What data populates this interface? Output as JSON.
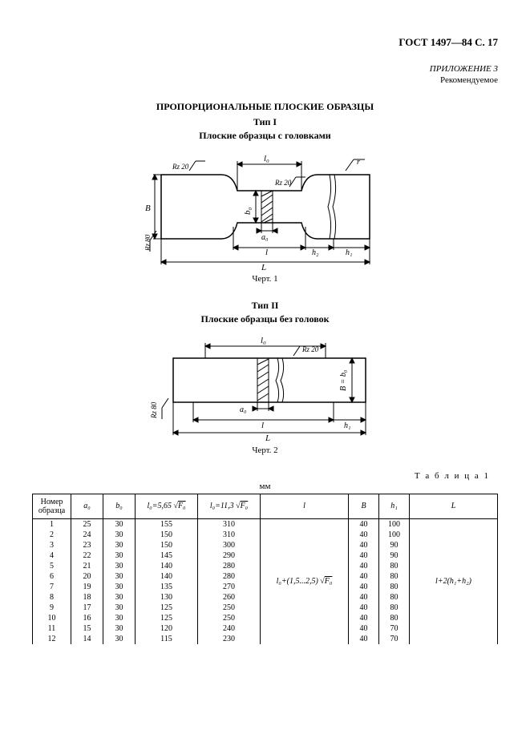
{
  "header": "ГОСТ 1497—84 С. 17",
  "appendix": {
    "line1": "ПРИЛОЖЕНИЕ 3",
    "line2": "Рекомендуемое"
  },
  "title": "ПРОПОРЦИОНАЛЬНЫЕ ПЛОСКИЕ ОБРАЗЦЫ",
  "fig1": {
    "type_label": "Тип I",
    "desc": "Плоские образцы с головками",
    "caption": "Черт. 1",
    "labels": {
      "rz20": "Rz 20",
      "rz80": "Rz 80",
      "l0": "l₀",
      "b0": "b₀",
      "a0": "a₀",
      "l": "l",
      "L": "L",
      "B": "B",
      "h1": "h₁",
      "h2": "h₂",
      "r": "r"
    }
  },
  "fig2": {
    "type_label": "Тип II",
    "desc": "Плоские образцы без головок",
    "caption": "Черт. 2",
    "labels": {
      "rz20": "Rz 20",
      "rz80": "Rz 80",
      "l0": "l₀",
      "a0": "a₀",
      "l": "l",
      "L": "L",
      "h1": "h₁",
      "Bb0": "B = b₀"
    }
  },
  "table": {
    "label": "Т а б л и ц а  1",
    "unit": "мм",
    "columns": {
      "c0": "Номер образца",
      "c1": "a₀",
      "c2": "b₀",
      "c3_prefix": "l₀=5,65 ",
      "c3_root": "F₀",
      "c4_prefix": "l₀=11,3 ",
      "c4_root": "F₀",
      "c5": "l",
      "c6": "B",
      "c7": "h₁",
      "c8": "L"
    },
    "rows": [
      [
        1,
        25,
        30,
        155,
        310,
        40,
        100
      ],
      [
        2,
        24,
        30,
        150,
        310,
        40,
        100
      ],
      [
        3,
        23,
        30,
        150,
        300,
        40,
        90
      ],
      [
        4,
        22,
        30,
        145,
        290,
        40,
        90
      ],
      [
        5,
        21,
        30,
        140,
        280,
        40,
        80
      ],
      [
        6,
        20,
        30,
        140,
        280,
        40,
        80
      ],
      [
        7,
        19,
        30,
        135,
        270,
        40,
        80
      ],
      [
        8,
        18,
        30,
        130,
        260,
        40,
        80
      ],
      [
        9,
        17,
        30,
        125,
        250,
        40,
        80
      ],
      [
        10,
        16,
        30,
        125,
        250,
        40,
        80
      ],
      [
        11,
        15,
        30,
        120,
        240,
        40,
        70
      ],
      [
        12,
        14,
        30,
        115,
        230,
        40,
        70
      ]
    ],
    "l_formula_prefix": "l₀+(1,5...2,5) ",
    "l_formula_root": "F₀",
    "L_formula": "l+2(h₁+h₂)"
  },
  "colors": {
    "stroke": "#000000",
    "hatch": "#000000",
    "bg": "#ffffff"
  }
}
